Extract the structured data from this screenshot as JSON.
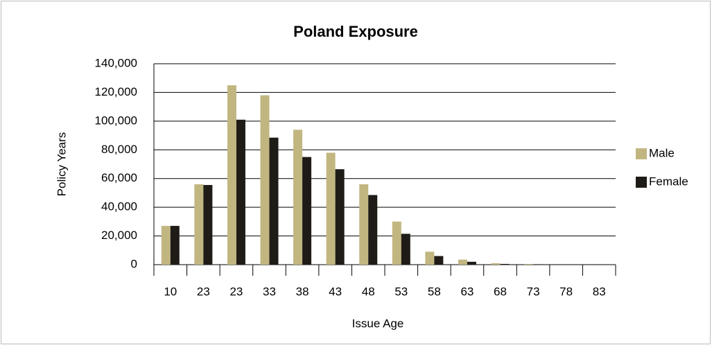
{
  "chart_data": {
    "type": "bar",
    "title": "Poland Exposure",
    "x_label": "Issue Age",
    "y_label": "Policy Years",
    "categories": [
      "10",
      "23",
      "23",
      "33",
      "38",
      "43",
      "48",
      "53",
      "58",
      "63",
      "68",
      "73",
      "78",
      "83"
    ],
    "series": [
      {
        "name": "Male",
        "color": "#c2b680",
        "values": [
          27000,
          56000,
          125000,
          118000,
          94000,
          78000,
          56000,
          30000,
          9000,
          3500,
          1000,
          500,
          0,
          0
        ]
      },
      {
        "name": "Female",
        "color": "#1f1c17",
        "values": [
          27000,
          55500,
          101000,
          88500,
          75000,
          66500,
          48500,
          21500,
          6000,
          2000,
          500,
          300,
          0,
          0
        ]
      }
    ],
    "ylim": [
      0,
      140000
    ],
    "yticks": [
      {
        "value": 0,
        "label": "0"
      },
      {
        "value": 20000,
        "label": "20,000"
      },
      {
        "value": 40000,
        "label": "40,000"
      },
      {
        "value": 60000,
        "label": "60,000"
      },
      {
        "value": 80000,
        "label": "80,000"
      },
      {
        "value": 100000,
        "label": "100,000"
      },
      {
        "value": 120000,
        "label": "120,000"
      },
      {
        "value": 140000,
        "label": "140,000"
      }
    ],
    "grid": true,
    "legend": "right"
  }
}
